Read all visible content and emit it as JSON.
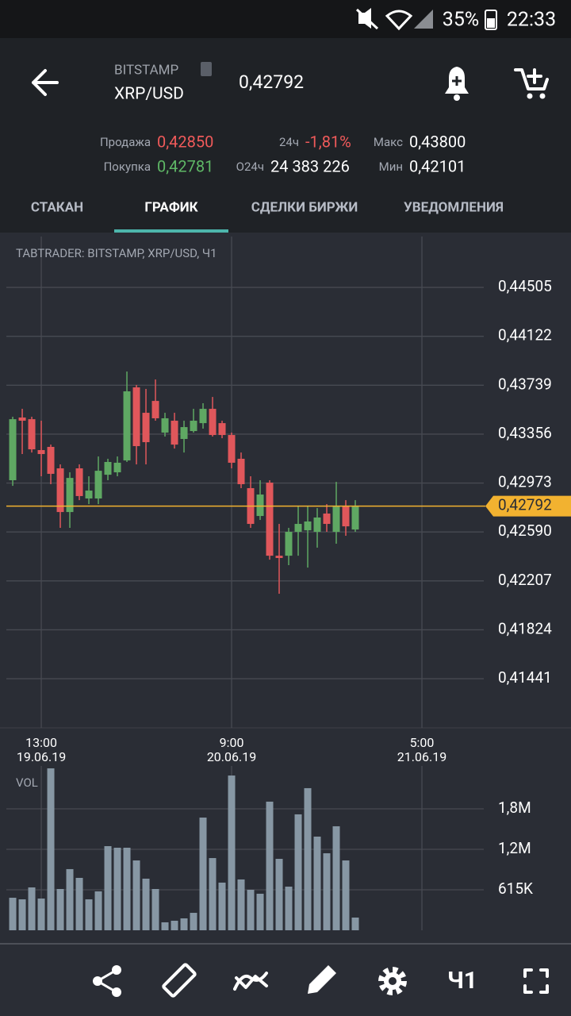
{
  "status_bar": {
    "battery": "35%",
    "time": "22:33"
  },
  "header": {
    "exchange": "BITSTAMP",
    "pair": "XRP/USD",
    "price": "0,42792"
  },
  "stats": [
    {
      "label": "Продажа",
      "value": "0,42850"
    },
    {
      "label": "24ч",
      "value": "-1,81%"
    },
    {
      "label": "Макс",
      "value": "0,43800"
    },
    {
      "label": "Покупка",
      "value": "0,42781"
    },
    {
      "label": "О24ч",
      "value": "24 383 226"
    },
    {
      "label": "Мин",
      "value": "0,42101"
    }
  ],
  "tabs": {
    "items": [
      "СТАКАН",
      "ГРАФИК",
      "СДЕЛКИ БИРЖИ",
      "УВЕДОМЛЕНИЯ"
    ],
    "active": 1
  },
  "chart_data": [
    {
      "type": "candlestick",
      "title": "TABTRADER: BITSTAMP, XRP/USD, Ч1",
      "up_color": "#5fa863",
      "down_color": "#e0575b",
      "open": [
        0.42995,
        0.43486,
        0.43473,
        0.43231,
        0.43256,
        0.43088,
        0.42746,
        0.43088,
        0.42852,
        0.42852,
        0.43038,
        0.43057,
        0.4315,
        0.43722,
        0.43523,
        0.43616,
        0.43368,
        0.43461,
        0.43318,
        0.4338,
        0.43442,
        0.43554,
        0.43442,
        0.43349,
        0.43163,
        0.42933,
        0.42715,
        0.42976,
        0.42404,
        0.42404,
        0.42591,
        0.42603,
        0.42591,
        0.42734,
        0.42591,
        0.42796,
        0.42609
      ],
      "high": [
        0.43492,
        0.43554,
        0.43492,
        0.43461,
        0.43274,
        0.43119,
        0.43057,
        0.43119,
        0.43026,
        0.43181,
        0.43163,
        0.43181,
        0.43846,
        0.43741,
        0.4371,
        0.43784,
        0.43523,
        0.43523,
        0.43461,
        0.43554,
        0.43598,
        0.43647,
        0.43461,
        0.43368,
        0.43212,
        0.43026,
        0.42995,
        0.42995,
        0.42653,
        0.42622,
        0.42796,
        0.42796,
        0.42777,
        0.42808,
        0.42982,
        0.42839,
        0.42839
      ],
      "low": [
        0.42951,
        0.432,
        0.43212,
        0.43026,
        0.42964,
        0.42622,
        0.42622,
        0.42839,
        0.42808,
        0.42808,
        0.42995,
        0.43026,
        0.43138,
        0.43119,
        0.43119,
        0.43461,
        0.43337,
        0.43243,
        0.43212,
        0.43368,
        0.43399,
        0.43337,
        0.43324,
        0.43088,
        0.42933,
        0.42622,
        0.42684,
        0.42373,
        0.42106,
        0.4233,
        0.42404,
        0.42311,
        0.42467,
        0.42591,
        0.42498,
        0.4256,
        0.42591
      ],
      "close": [
        0.43473,
        0.43461,
        0.43237,
        0.432,
        0.43045,
        0.42746,
        0.43013,
        0.42871,
        0.42914,
        0.43069,
        0.43138,
        0.43132,
        0.43691,
        0.43262,
        0.43293,
        0.4348,
        0.4348,
        0.43274,
        0.43411,
        0.43461,
        0.43554,
        0.43349,
        0.43349,
        0.43132,
        0.42964,
        0.42653,
        0.42883,
        0.42404,
        0.42386,
        0.42591,
        0.42653,
        0.42672,
        0.42703,
        0.42653,
        0.4279,
        0.42634,
        0.42792
      ],
      "xlim": [
        -0.67,
        49.5
      ],
      "xticks": [
        {
          "value": 3,
          "label": "13:00",
          "date": "19.06.19"
        },
        {
          "value": 23,
          "label": "9:00",
          "date": "20.06.19"
        },
        {
          "value": 43,
          "label": "5:00",
          "date": "21.06.19"
        }
      ],
      "ylim": [
        0.41056,
        0.44903
      ],
      "yticks": [
        {
          "value": 0.44505,
          "label": "0,44505"
        },
        {
          "value": 0.44122,
          "label": "0,44122"
        },
        {
          "value": 0.43739,
          "label": "0,43739"
        },
        {
          "value": 0.43356,
          "label": "0,43356"
        },
        {
          "value": 0.42973,
          "label": "0,42973"
        },
        {
          "value": 0.4259,
          "label": "0,42590"
        },
        {
          "value": 0.42207,
          "label": "0,42207"
        },
        {
          "value": 0.41824,
          "label": "0,41824"
        },
        {
          "value": 0.41441,
          "label": "0,41441"
        }
      ],
      "last_price": {
        "value": 0.42792,
        "label": "0,42792",
        "color": "#f2b230"
      },
      "grid": true
    },
    {
      "type": "bar",
      "title": "VOL",
      "color": "#8797a4",
      "values": [
        494000,
        470000,
        651000,
        482000,
        2460000,
        627000,
        929000,
        796000,
        470000,
        591000,
        1278000,
        1254000,
        1254000,
        1061000,
        784000,
        627000,
        121000,
        145000,
        181000,
        265000,
        1712000,
        1097000,
        724000,
        2351000,
        772000,
        615000,
        555000,
        1954000,
        1085000,
        663000,
        1761000,
        2159000,
        1423000,
        1170000,
        1580000,
        1061000,
        193000
      ],
      "ylim": [
        0,
        2496000
      ],
      "yticks": [
        {
          "value": 615000,
          "label": "615K"
        },
        {
          "value": 1230000,
          "label": "1,2M"
        },
        {
          "value": 1845000,
          "label": "1,8M"
        }
      ],
      "grid": true
    }
  ],
  "toolbar": {
    "interval": "Ч1"
  }
}
